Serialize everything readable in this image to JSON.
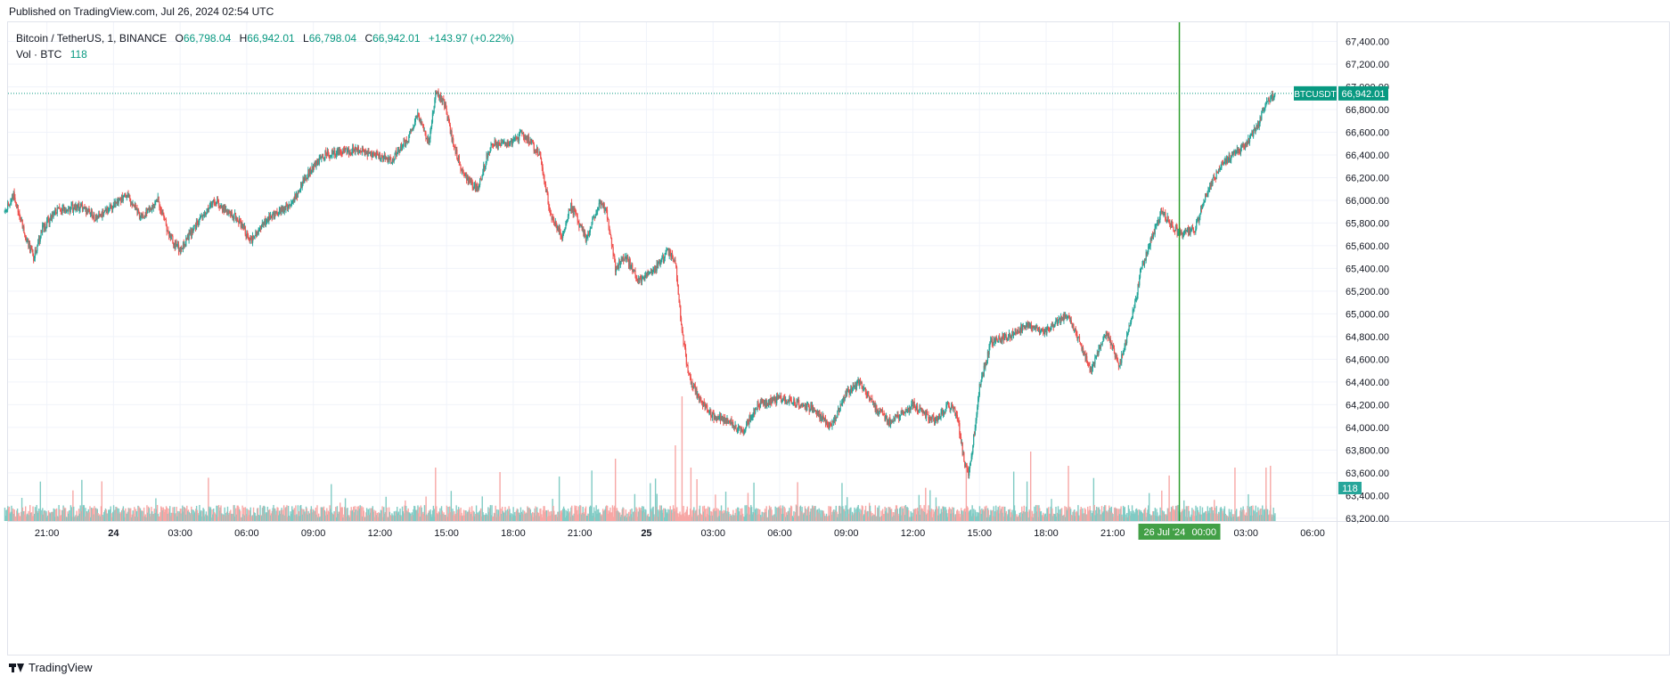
{
  "header": {
    "published": "Published on TradingView.com, Jul 26, 2024 02:54 UTC"
  },
  "legend": {
    "symbol": "Bitcoin / TetherUS, 1, BINANCE",
    "o_label": "O",
    "o_value": "66,798.04",
    "h_label": "H",
    "h_value": "66,942.01",
    "l_label": "L",
    "l_value": "66,798.04",
    "c_label": "C",
    "c_value": "66,942.01",
    "change": "+143.97 (+0.22%)",
    "vol_label": "Vol · BTC",
    "vol_value": "118"
  },
  "footer": {
    "brand": "TradingView"
  },
  "colors": {
    "up": "#26a69a",
    "down": "#ef5350",
    "up_vol": "#80cbc4",
    "down_vol": "#f7a7a5",
    "price_line": "#089981",
    "crosshair": "#2e9e2e",
    "grid": "#f0f3fa",
    "axis_text": "#131722"
  },
  "chart_data": {
    "type": "candlestick",
    "symbol": "BTCUSDT",
    "interval": "1",
    "exchange": "BINANCE",
    "last_price": 66942.01,
    "last_price_label": "66,942.01",
    "price_tag_symbol": "BTCUSDT",
    "volume_tag": "118",
    "ylim": [
      63050,
      67520
    ],
    "y_ticks": [
      63200,
      63400,
      63600,
      63800,
      64000,
      64200,
      64400,
      64600,
      64800,
      65000,
      65200,
      65400,
      65600,
      65800,
      66000,
      66200,
      66400,
      66600,
      66800,
      67000,
      67200,
      67400
    ],
    "y_tick_labels": [
      "63,200.00",
      "63,400.00",
      "63,600.00",
      "63,800.00",
      "64,000.00",
      "64,200.00",
      "64,400.00",
      "64,600.00",
      "64,800.00",
      "65,000.00",
      "65,200.00",
      "65,400.00",
      "65,600.00",
      "65,800.00",
      "66,000.00",
      "66,200.00",
      "66,400.00",
      "66,600.00",
      "66,800.00",
      "67,000.00",
      "67,200.00",
      "67,400.00"
    ],
    "xlim_hours": [
      -4.5,
      33.5
    ],
    "x_ticks": [
      {
        "label": "21:00",
        "t": -3,
        "bold": false
      },
      {
        "label": "24",
        "t": 0,
        "bold": true
      },
      {
        "label": "03:00",
        "t": 3,
        "bold": false
      },
      {
        "label": "06:00",
        "t": 6,
        "bold": false
      },
      {
        "label": "09:00",
        "t": 9,
        "bold": false
      },
      {
        "label": "12:00",
        "t": 12,
        "bold": false
      },
      {
        "label": "15:00",
        "t": 15,
        "bold": false
      },
      {
        "label": "18:00",
        "t": 18,
        "bold": false
      },
      {
        "label": "21:00",
        "t": 21,
        "bold": false
      },
      {
        "label": "25",
        "t": 24,
        "bold": true
      },
      {
        "label": "03:00",
        "t": 27,
        "bold": false
      },
      {
        "label": "06:00",
        "t": 30,
        "bold": false
      },
      {
        "label": "09:00",
        "t": 33,
        "bold": false
      },
      {
        "label": "12:00",
        "t": 36,
        "bold": false
      },
      {
        "label": "15:00",
        "t": 39,
        "bold": false
      },
      {
        "label": "18:00",
        "t": 42,
        "bold": false
      },
      {
        "label": "21:00",
        "t": 45,
        "bold": false
      },
      {
        "label": "03:00",
        "t": 51,
        "bold": false
      },
      {
        "label": "06:00",
        "t": 54,
        "bold": false
      }
    ],
    "crosshair": {
      "t": 48,
      "label_date": "26 Jul '24",
      "label_time": "00:00"
    },
    "price_path": [
      [
        -4.9,
        65900
      ],
      [
        -4.5,
        66050
      ],
      [
        -4.0,
        65700
      ],
      [
        -3.6,
        65500
      ],
      [
        -3.2,
        65750
      ],
      [
        -2.6,
        65900
      ],
      [
        -1.5,
        65950
      ],
      [
        -0.8,
        65850
      ],
      [
        0.0,
        65950
      ],
      [
        0.6,
        66050
      ],
      [
        1.2,
        65850
      ],
      [
        2.0,
        66000
      ],
      [
        2.5,
        65700
      ],
      [
        3.0,
        65550
      ],
      [
        3.6,
        65750
      ],
      [
        4.5,
        66000
      ],
      [
        5.5,
        65850
      ],
      [
        6.2,
        65650
      ],
      [
        7.0,
        65850
      ],
      [
        8.0,
        65950
      ],
      [
        8.6,
        66200
      ],
      [
        9.5,
        66400
      ],
      [
        11.0,
        66450
      ],
      [
        12.5,
        66350
      ],
      [
        13.3,
        66550
      ],
      [
        13.7,
        66750
      ],
      [
        14.2,
        66500
      ],
      [
        14.5,
        66950
      ],
      [
        14.9,
        66850
      ],
      [
        15.3,
        66500
      ],
      [
        15.8,
        66200
      ],
      [
        16.4,
        66100
      ],
      [
        17.0,
        66500
      ],
      [
        18.0,
        66500
      ],
      [
        18.4,
        66600
      ],
      [
        19.2,
        66400
      ],
      [
        19.7,
        65850
      ],
      [
        20.2,
        65700
      ],
      [
        20.6,
        65950
      ],
      [
        21.3,
        65650
      ],
      [
        21.9,
        66000
      ],
      [
        22.2,
        65900
      ],
      [
        22.6,
        65400
      ],
      [
        23.1,
        65500
      ],
      [
        23.6,
        65300
      ],
      [
        24.4,
        65400
      ],
      [
        25.0,
        65550
      ],
      [
        25.3,
        65450
      ],
      [
        25.6,
        64850
      ],
      [
        25.9,
        64450
      ],
      [
        26.4,
        64250
      ],
      [
        27.0,
        64100
      ],
      [
        27.8,
        64050
      ],
      [
        28.3,
        63950
      ],
      [
        29.0,
        64200
      ],
      [
        30.0,
        64250
      ],
      [
        31.0,
        64200
      ],
      [
        31.6,
        64150
      ],
      [
        32.3,
        64000
      ],
      [
        33.0,
        64300
      ],
      [
        33.6,
        64400
      ],
      [
        34.4,
        64150
      ],
      [
        35.0,
        64050
      ],
      [
        36.0,
        64200
      ],
      [
        37.0,
        64050
      ],
      [
        37.6,
        64200
      ],
      [
        38.0,
        64100
      ],
      [
        38.3,
        63700
      ],
      [
        38.5,
        63600
      ],
      [
        38.7,
        63850
      ],
      [
        39.0,
        64350
      ],
      [
        39.5,
        64750
      ],
      [
        40.3,
        64800
      ],
      [
        41.0,
        64900
      ],
      [
        42.0,
        64850
      ],
      [
        43.0,
        65000
      ],
      [
        43.5,
        64750
      ],
      [
        44.0,
        64500
      ],
      [
        44.7,
        64850
      ],
      [
        45.3,
        64550
      ],
      [
        45.9,
        65000
      ],
      [
        46.3,
        65400
      ],
      [
        46.8,
        65700
      ],
      [
        47.2,
        65900
      ],
      [
        48.0,
        65700
      ],
      [
        48.7,
        65750
      ],
      [
        49.3,
        66100
      ],
      [
        50.0,
        66350
      ],
      [
        50.8,
        66450
      ],
      [
        51.5,
        66650
      ],
      [
        52.0,
        66900
      ],
      [
        52.3,
        66900
      ]
    ]
  }
}
